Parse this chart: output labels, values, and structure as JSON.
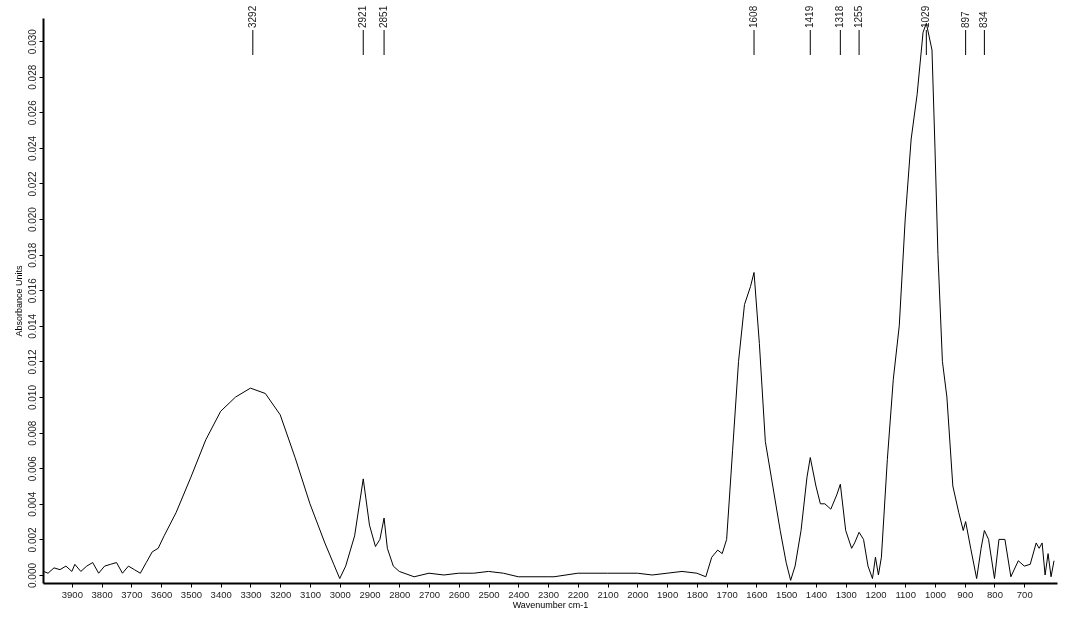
{
  "chart_data": {
    "type": "line",
    "xlabel": "Wavenumber cm-1",
    "ylabel": "Absorbance Units",
    "xlim": [
      3997,
      590
    ],
    "ylim": [
      -0.00045,
      0.0313
    ],
    "xticks": [
      3900,
      3800,
      3700,
      3600,
      3500,
      3400,
      3300,
      3200,
      3100,
      3000,
      2900,
      2800,
      2700,
      2600,
      2500,
      2400,
      2300,
      2200,
      2100,
      2000,
      1900,
      1800,
      1700,
      1600,
      1500,
      1400,
      1300,
      1200,
      1100,
      1000,
      900,
      800,
      700
    ],
    "yticks": [
      {
        "value": 0,
        "label": "0.000"
      },
      {
        "value": 0.002,
        "label": "0.002"
      },
      {
        "value": 0.004,
        "label": "0.004"
      },
      {
        "value": 0.006,
        "label": "0.006"
      },
      {
        "value": 0.008,
        "label": "0.008"
      },
      {
        "value": 0.01,
        "label": "0.010"
      },
      {
        "value": 0.012,
        "label": "0.012"
      },
      {
        "value": 0.014,
        "label": "0.014"
      },
      {
        "value": 0.016,
        "label": "0.016"
      },
      {
        "value": 0.018,
        "label": "0.018"
      },
      {
        "value": 0.02,
        "label": "0.020"
      },
      {
        "value": 0.022,
        "label": "0.022"
      },
      {
        "value": 0.024,
        "label": "0.024"
      },
      {
        "value": 0.026,
        "label": "0.026"
      },
      {
        "value": 0.028,
        "label": "0.028"
      },
      {
        "value": 0.03,
        "label": "0.030"
      }
    ],
    "grid": false,
    "marker": "none",
    "line_style": "solid",
    "series": [
      {
        "color": "#000000",
        "x": [
          3995,
          3980,
          3960,
          3940,
          3920,
          3900,
          3890,
          3870,
          3850,
          3830,
          3810,
          3790,
          3770,
          3750,
          3730,
          3710,
          3690,
          3670,
          3650,
          3630,
          3610,
          3590,
          3550,
          3500,
          3450,
          3400,
          3350,
          3300,
          3250,
          3200,
          3150,
          3100,
          3050,
          3020,
          3000,
          2980,
          2950,
          2921,
          2900,
          2880,
          2865,
          2851,
          2840,
          2820,
          2800,
          2750,
          2700,
          2650,
          2600,
          2550,
          2500,
          2450,
          2400,
          2300,
          2280,
          2200,
          2100,
          2000,
          1950,
          1900,
          1850,
          1800,
          1770,
          1750,
          1730,
          1715,
          1700,
          1680,
          1660,
          1640,
          1620,
          1608,
          1590,
          1570,
          1550,
          1520,
          1500,
          1485,
          1470,
          1450,
          1430,
          1419,
          1400,
          1385,
          1370,
          1350,
          1330,
          1318,
          1300,
          1280,
          1270,
          1255,
          1240,
          1225,
          1210,
          1200,
          1190,
          1180,
          1160,
          1140,
          1120,
          1100,
          1080,
          1060,
          1040,
          1029,
          1010,
          1000,
          990,
          975,
          960,
          940,
          920,
          905,
          897,
          880,
          860,
          845,
          834,
          820,
          800,
          785,
          765,
          745,
          720,
          700,
          680,
          660,
          650,
          640,
          630,
          620,
          610,
          600
        ],
        "values": [
          0.0002,
          0.0001,
          0.0004,
          0.0003,
          0.0005,
          0.0002,
          0.0006,
          0.0002,
          0.0005,
          0.0007,
          0.0001,
          0.0005,
          0.0006,
          0.0007,
          0.0001,
          0.0005,
          0.0003,
          0.0001,
          0.0007,
          0.0013,
          0.0015,
          0.0022,
          0.0035,
          0.0055,
          0.0076,
          0.0092,
          0.01,
          0.0105,
          0.0102,
          0.009,
          0.0066,
          0.004,
          0.0018,
          0.0006,
          -0.0002,
          0.0005,
          0.0022,
          0.0054,
          0.0028,
          0.0016,
          0.002,
          0.0032,
          0.0015,
          0.0005,
          0.0002,
          -0.0001,
          0.0001,
          0,
          0.0001,
          0.0001,
          0.0002,
          0.0001,
          -0.0001,
          -0.0001,
          -0.0001,
          0.0001,
          0.0001,
          0.0001,
          0,
          0.0001,
          0.0002,
          0.0001,
          -0.0001,
          0.001,
          0.0014,
          0.0012,
          0.002,
          0.007,
          0.012,
          0.0152,
          0.0162,
          0.017,
          0.013,
          0.0075,
          0.0055,
          0.0025,
          0.0007,
          -0.0003,
          0.0005,
          0.0025,
          0.0055,
          0.0066,
          0.005,
          0.004,
          0.004,
          0.0037,
          0.0045,
          0.0051,
          0.0025,
          0.0015,
          0.0018,
          0.0024,
          0.002,
          0.0005,
          -0.0002,
          0.001,
          0,
          0.001,
          0.0065,
          0.011,
          0.014,
          0.02,
          0.0245,
          0.027,
          0.0305,
          0.031,
          0.0295,
          0.024,
          0.018,
          0.012,
          0.01,
          0.005,
          0.0035,
          0.0025,
          0.003,
          0.0015,
          -0.0002,
          0.0015,
          0.0025,
          0.002,
          -0.0002,
          0.002,
          0.002,
          -0.0001,
          0.0008,
          0.0005,
          0.0006,
          0.0018,
          0.0015,
          0.0018,
          0,
          0.0012,
          -0.0001,
          0.0008
        ]
      }
    ],
    "ref_lines": [
      {
        "axis": "x",
        "value": 3292,
        "label": "3292"
      },
      {
        "axis": "x",
        "value": 2921,
        "label": "2921"
      },
      {
        "axis": "x",
        "value": 2851,
        "label": "2851"
      },
      {
        "axis": "x",
        "value": 1608,
        "label": "1608"
      },
      {
        "axis": "x",
        "value": 1419,
        "label": "1419"
      },
      {
        "axis": "x",
        "value": 1318,
        "label": "1318"
      },
      {
        "axis": "x",
        "value": 1255,
        "label": "1255"
      },
      {
        "axis": "x",
        "value": 1029,
        "label": "1029"
      },
      {
        "axis": "x",
        "value": 897,
        "label": "897"
      },
      {
        "axis": "x",
        "value": 834,
        "label": "834"
      }
    ]
  }
}
